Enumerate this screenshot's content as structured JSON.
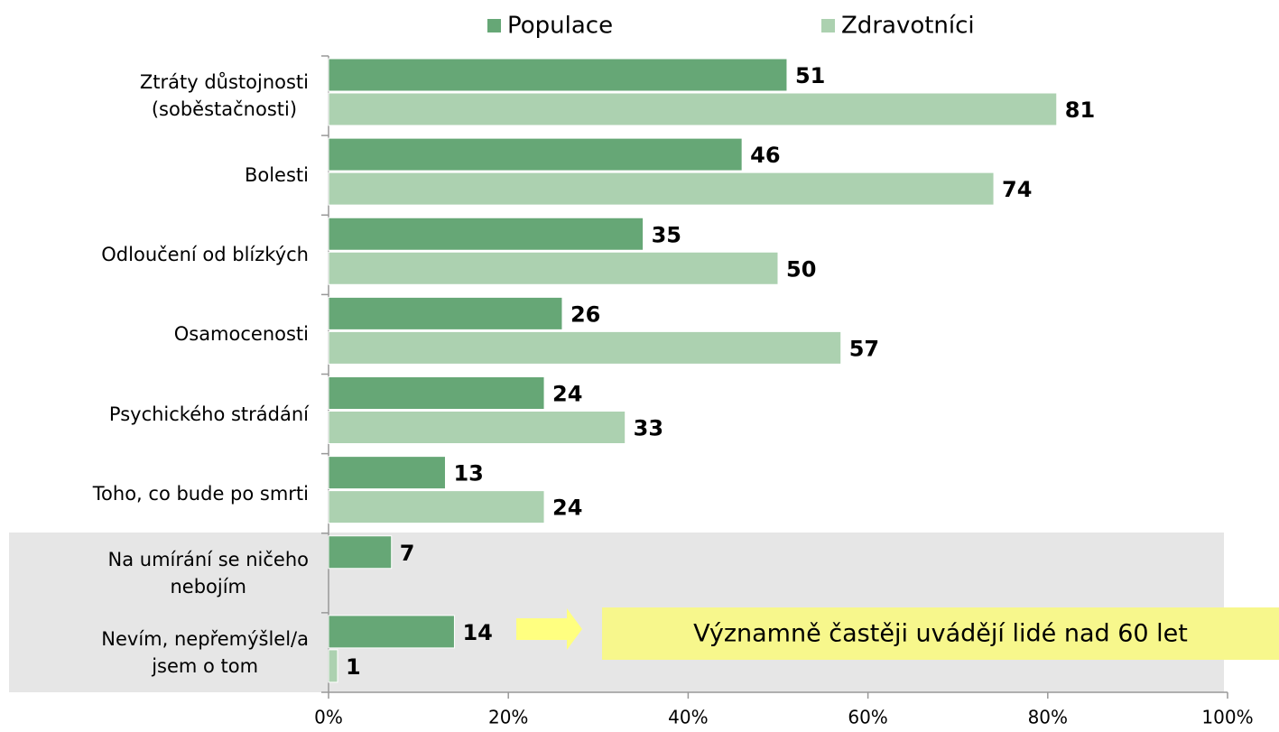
{
  "chart_data": {
    "type": "bar",
    "orientation": "horizontal",
    "categories": [
      "Ztráty důstojnosti\n(soběstačnosti)",
      "Bolesti",
      "Odloučení od blízkých",
      "Osamocenosti",
      "Psychického strádání",
      "Toho, co bude po smrti",
      "Na umírání se ničeho\nnebojím",
      "Nevím, nepřemýšlel/a\njsem o tom"
    ],
    "series": [
      {
        "name": "Populace",
        "color": "#66a776",
        "values": [
          51,
          46,
          35,
          26,
          24,
          13,
          7,
          14
        ]
      },
      {
        "name": "Zdravotníci",
        "color": "#acd1b0",
        "values": [
          81,
          74,
          50,
          57,
          33,
          24,
          null,
          1
        ]
      }
    ],
    "xlim": [
      0,
      100
    ],
    "xticks": [
      {
        "value": 0,
        "label": "0%"
      },
      {
        "value": 20,
        "label": "20%"
      },
      {
        "value": 40,
        "label": "40%"
      },
      {
        "value": 60,
        "label": "60%"
      },
      {
        "value": 80,
        "label": "80%"
      },
      {
        "value": 100,
        "label": "100%"
      }
    ],
    "legend": "top",
    "annotation": "Významně častěji uvádějí lidé nad 60 let"
  }
}
